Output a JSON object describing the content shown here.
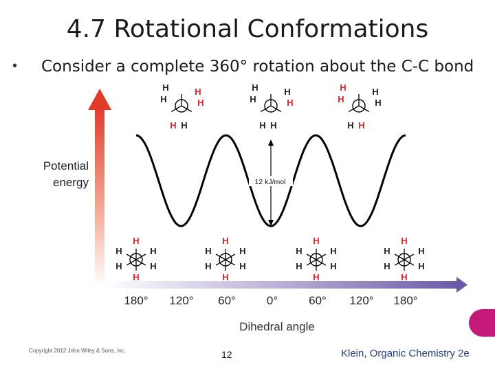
{
  "slide": {
    "title": "4.7 Rotational Conformations",
    "bullet": "Consider a complete 360° rotation about the C-C bond",
    "page_number": "12",
    "copyright": "Copyright 2012 John Wiley & Sons, Inc.",
    "citation_main": "Klein, Organic Chemistry ",
    "citation_edition": "2e"
  },
  "figure": {
    "y_label_line1": "Potential",
    "y_label_line2": "energy",
    "x_label": "Dihedral angle",
    "barrier_label": "12 kJ/mol",
    "x_ticks": [
      "180°",
      "120°",
      "60°",
      "0°",
      "60°",
      "120°",
      "180°"
    ],
    "atom_label": "H",
    "colors": {
      "arrow": "#e23a28",
      "highlight_h": "#e0262b",
      "axis": "#7f6fb0",
      "curve": "#000000"
    }
  }
}
